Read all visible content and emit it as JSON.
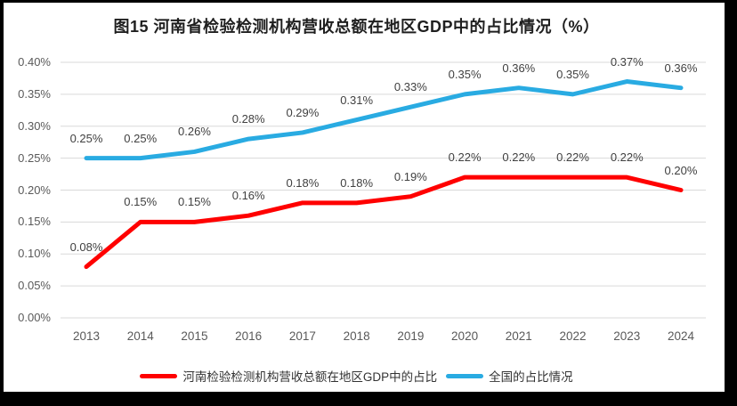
{
  "title": "图15  河南省检验检测机构营收总额在地区GDP中的占比情况（%）",
  "chart_data": {
    "type": "line",
    "title": "图15  河南省检验检测机构营收总额在地区GDP中的占比情况（%）",
    "categories": [
      "2013",
      "2014",
      "2015",
      "2016",
      "2017",
      "2018",
      "2019",
      "2020",
      "2021",
      "2022",
      "2023",
      "2024"
    ],
    "series": [
      {
        "name": "河南检验检测机构营收总额在地区GDP中的占比",
        "color": "#FF0000",
        "values": [
          0.08,
          0.15,
          0.15,
          0.16,
          0.18,
          0.18,
          0.19,
          0.22,
          0.22,
          0.22,
          0.22,
          0.2
        ],
        "labels": [
          "0.08%",
          "0.15%",
          "0.15%",
          "0.16%",
          "0.18%",
          "0.18%",
          "0.19%",
          "0.22%",
          "0.22%",
          "0.22%",
          "0.22%",
          "0.20%"
        ]
      },
      {
        "name": "全国的占比情况",
        "color": "#29ABE2",
        "values": [
          0.25,
          0.25,
          0.26,
          0.28,
          0.29,
          0.31,
          0.33,
          0.35,
          0.36,
          0.35,
          0.37,
          0.36
        ],
        "labels": [
          "0.25%",
          "0.25%",
          "0.26%",
          "0.28%",
          "0.29%",
          "0.31%",
          "0.33%",
          "0.35%",
          "0.36%",
          "0.35%",
          "0.37%",
          "0.36%"
        ]
      }
    ],
    "y_ticks": [
      "0.00%",
      "0.05%",
      "0.10%",
      "0.15%",
      "0.20%",
      "0.25%",
      "0.30%",
      "0.35%",
      "0.40%"
    ],
    "ylim": [
      0,
      0.4
    ],
    "unit": "%",
    "grid": true,
    "legend_position": "bottom",
    "colors": {
      "grid": "#D9D9D9",
      "axis_text": "#595959",
      "data_label": "#404040",
      "title_text": "#1F1F1F",
      "frame": "#000000",
      "background": "#FFFFFF"
    }
  }
}
